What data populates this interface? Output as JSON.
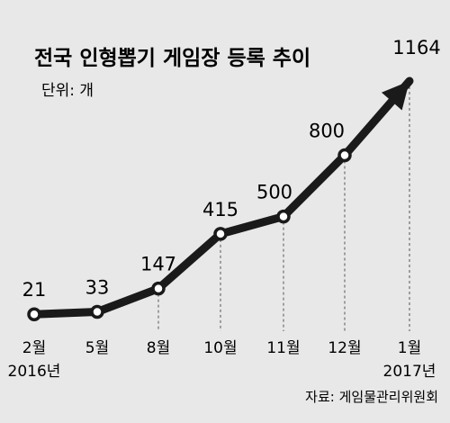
{
  "chart_data": {
    "type": "line",
    "title": "전국 인형뽑기 게임장 등록 추이",
    "unit": "단위: 개",
    "categories": [
      "2월",
      "5월",
      "8월",
      "10월",
      "11월",
      "12월",
      "1월"
    ],
    "year_labels": [
      "2016년",
      "",
      "",
      "",
      "",
      "",
      "2017년"
    ],
    "values": [
      21,
      33,
      147,
      415,
      500,
      800,
      1164
    ],
    "value_labels": [
      "21",
      "33",
      "147",
      "415",
      "500",
      "800",
      "1164"
    ],
    "source": "자료: 게임물관리위원회",
    "grid": false,
    "ylim": [
      0,
      1164
    ],
    "colors": {
      "line": "#1a1a1a",
      "marker_fill": "#ffffff",
      "background": "#e8e8e8",
      "guide": "#555555"
    }
  }
}
